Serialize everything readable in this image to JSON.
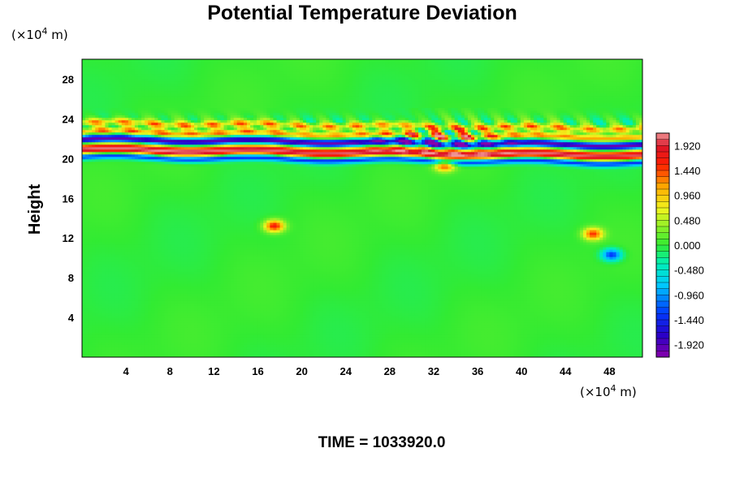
{
  "chart_data": {
    "type": "heatmap",
    "title": "Potential Temperature Deviation",
    "ylabel": "Height",
    "x_unit_label": "(×10",
    "x_unit_exp": "4",
    "x_unit_suffix": " m)",
    "y_unit_label": "(×10",
    "y_unit_exp": "4",
    "y_unit_suffix": " m)",
    "xlim": [
      0,
      51
    ],
    "ylim": [
      0,
      30
    ],
    "x_ticks": [
      4,
      8,
      12,
      16,
      20,
      24,
      28,
      32,
      36,
      40,
      44,
      48
    ],
    "y_ticks": [
      4,
      8,
      12,
      16,
      20,
      24,
      28
    ],
    "colorbar": {
      "range": [
        -2.16,
        2.16
      ],
      "tick_values": [
        1.92,
        1.44,
        0.96,
        0.48,
        0.0,
        -0.48,
        -0.96,
        -1.44,
        -1.92
      ],
      "tick_labels": [
        "1.920",
        "1.440",
        "0.960",
        "0.480",
        "0.000",
        "-0.480",
        "-0.960",
        "-1.440",
        "-1.920"
      ],
      "levels": 36
    },
    "features": [
      {
        "kind": "band",
        "x": [
          0,
          51
        ],
        "y_center": 20.6,
        "thickness": 0.9,
        "value": 2.1
      },
      {
        "kind": "band",
        "x": [
          0,
          51
        ],
        "y_center": 21.6,
        "thickness": 0.6,
        "value": -2.1
      },
      {
        "kind": "band",
        "x": [
          0,
          51
        ],
        "y_center": 19.9,
        "thickness": 0.5,
        "value": -1.8
      },
      {
        "kind": "band",
        "x": [
          0,
          51
        ],
        "y_center": 22.4,
        "thickness": 0.5,
        "value": 1.2
      },
      {
        "kind": "band",
        "x": [
          0,
          51
        ],
        "y_center": 23.3,
        "thickness": 0.5,
        "value": 1.0
      },
      {
        "kind": "blob",
        "x": 17.5,
        "y": 13.2,
        "value": 1.7
      },
      {
        "kind": "blob",
        "x": 46.5,
        "y": 12.4,
        "value": 1.5
      },
      {
        "kind": "blob",
        "x": 48.2,
        "y": 10.3,
        "value": -1.4
      },
      {
        "kind": "blob",
        "x": 33.0,
        "y": 19.3,
        "value": 1.5
      },
      {
        "kind": "wavepacket",
        "x": [
          26,
          40
        ],
        "y": [
          21,
          24
        ],
        "value": 1.6
      }
    ]
  },
  "footer": {
    "time_label": "TIME = 1033920.0"
  }
}
